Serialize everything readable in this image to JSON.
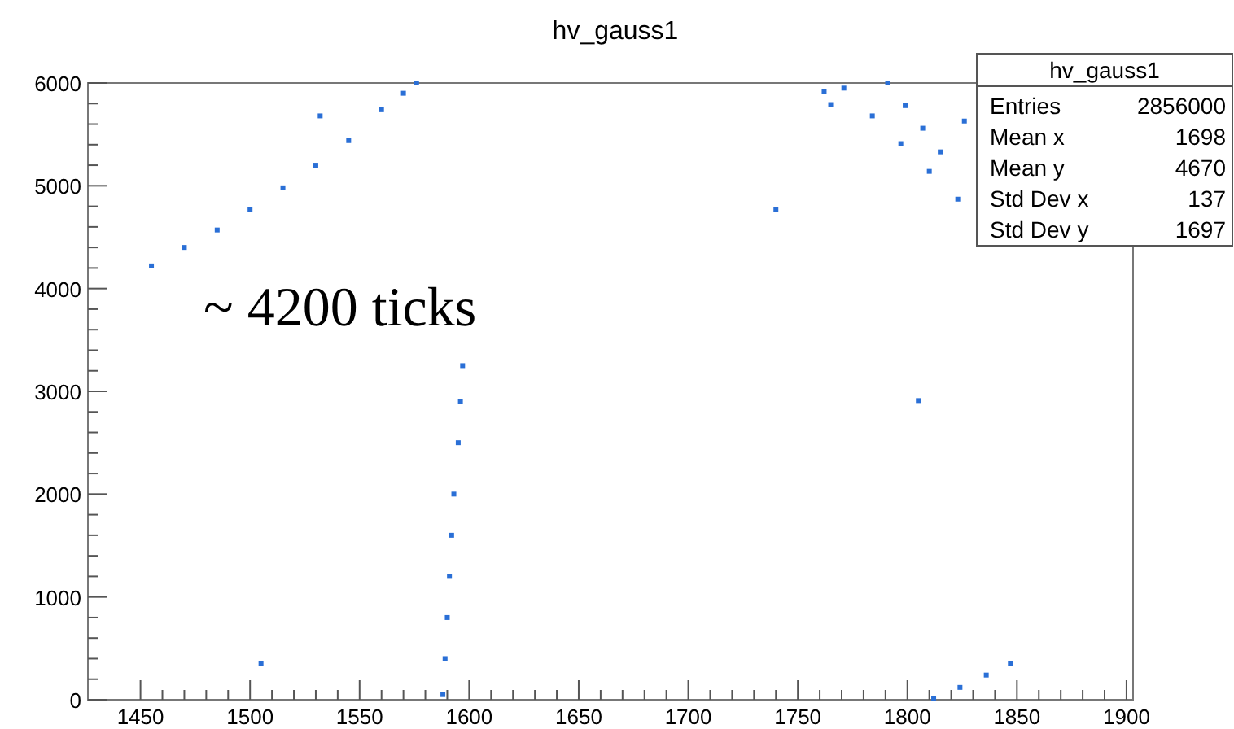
{
  "chart_data": {
    "type": "scatter",
    "title": "hv_gauss1",
    "marker": "square",
    "grid": false,
    "xlim": [
      1426,
      1903
    ],
    "ylim": [
      0,
      6000
    ],
    "xticks": [
      1450,
      1500,
      1550,
      1600,
      1650,
      1700,
      1750,
      1800,
      1850,
      1900
    ],
    "yticks": [
      0,
      1000,
      2000,
      3000,
      4000,
      5000,
      6000
    ],
    "annotations": [
      "~ 4200 ticks",
      "hv_gauss1",
      "Entries 2856000",
      "Mean x 1698",
      "Mean y 4670",
      "Std Dev x 137",
      "Std Dev y 1697"
    ],
    "series": [
      {
        "color": "#2a6fd6",
        "x": [
          1455,
          1470,
          1485,
          1500,
          1515,
          1530,
          1545,
          1560,
          1570,
          1576,
          1588,
          1589,
          1590,
          1591,
          1592,
          1593,
          1595,
          1596,
          1597,
          1505,
          1532,
          1740,
          1805,
          1826,
          1762,
          1765,
          1771,
          1784,
          1797,
          1810,
          1823,
          1791,
          1799,
          1807,
          1815,
          1812,
          1824,
          1836,
          1847
        ],
        "values": [
          4220,
          4400,
          4570,
          4770,
          4980,
          5200,
          5440,
          5740,
          5900,
          6000,
          50,
          400,
          800,
          1200,
          1600,
          2000,
          2500,
          2900,
          3250,
          350,
          5680,
          4770,
          2910,
          5630,
          5920,
          5790,
          5950,
          5680,
          5410,
          5140,
          4870,
          6000,
          5780,
          5560,
          5330,
          10,
          120,
          240,
          355
        ]
      }
    ]
  }
}
